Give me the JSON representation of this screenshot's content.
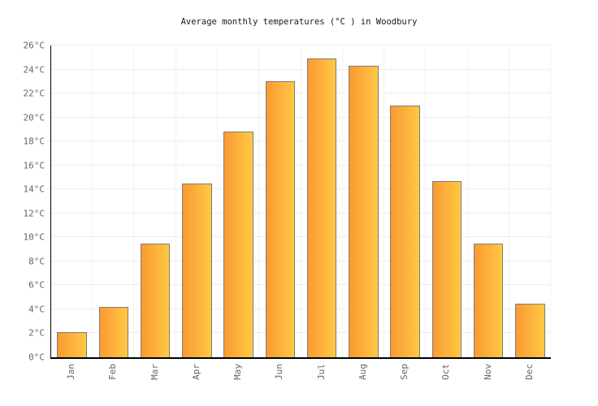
{
  "chart_data": {
    "type": "bar",
    "title": "Average monthly temperatures (°C ) in Woodbury",
    "categories": [
      "Jan",
      "Feb",
      "Mar",
      "Apr",
      "May",
      "Jun",
      "Jul",
      "Aug",
      "Sep",
      "Oct",
      "Nov",
      "Dec"
    ],
    "values": [
      2.1,
      4.2,
      9.5,
      14.5,
      18.8,
      23,
      24.9,
      24.3,
      21,
      14.7,
      9.5,
      4.5
    ],
    "unit": "°C",
    "xlabel": "",
    "ylabel": "",
    "ylim": [
      0,
      26
    ],
    "y_tick_step": 2,
    "y_tick_labels": [
      "0°C",
      "2°C",
      "4°C",
      "6°C",
      "8°C",
      "10°C",
      "12°C",
      "14°C",
      "16°C",
      "18°C",
      "20°C",
      "22°C",
      "24°C",
      "26°C"
    ],
    "legend": {
      "visible": false
    },
    "grid": {
      "horizontal": true,
      "vertical": true,
      "h_color": "#eeeeee",
      "v_color": "#f2f2f2"
    },
    "styles": {
      "bar_gradient_left": "#fa9a33",
      "bar_gradient_right": "#ffc844",
      "bar_border": "#7d7d7d",
      "axis_color": "#000000",
      "tick_label_color": "#666666",
      "title_color": "#1a1a1a",
      "background": "#ffffff"
    }
  }
}
